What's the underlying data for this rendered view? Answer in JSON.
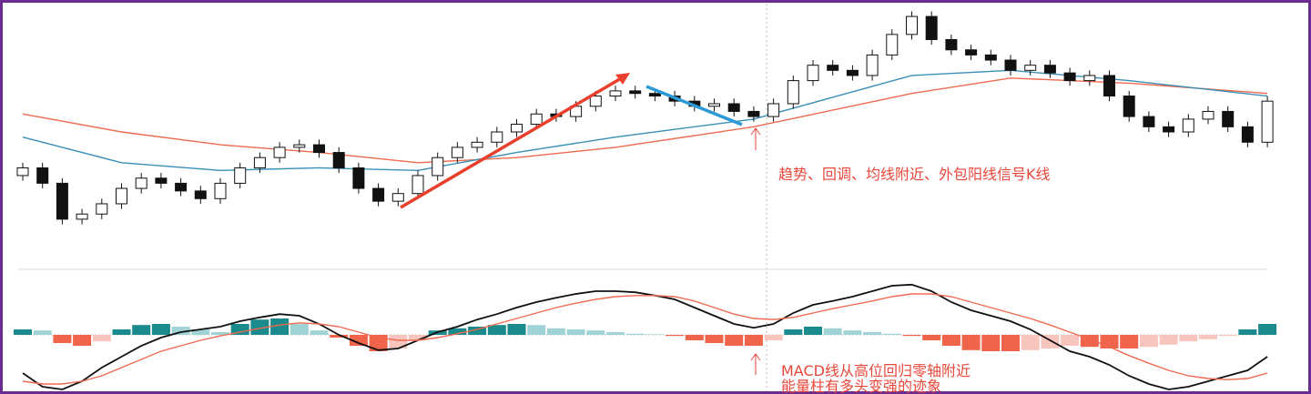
{
  "chart_data": [
    {
      "type": "candlestick",
      "annotation": "趋势、回调、均线附近、外包阳线信号K线",
      "open": [
        33,
        36,
        30,
        16,
        18,
        22,
        28,
        32,
        30,
        27,
        24,
        30,
        36,
        40,
        44,
        45,
        42,
        36,
        28,
        23,
        26,
        33,
        40,
        44,
        46,
        50,
        53,
        57,
        56,
        60,
        64,
        66,
        65,
        64,
        62,
        60,
        61,
        58,
        56,
        61,
        70,
        76,
        74,
        72,
        80,
        88,
        95,
        86,
        82,
        80,
        78,
        74,
        76,
        73,
        70,
        72,
        64,
        56,
        52,
        50,
        55,
        58,
        52,
        46
      ],
      "high": [
        38,
        38,
        32,
        20,
        24,
        30,
        34,
        34,
        32,
        29,
        32,
        38,
        42,
        46,
        47,
        47,
        44,
        38,
        30,
        28,
        35,
        42,
        46,
        48,
        52,
        55,
        59,
        59,
        62,
        66,
        68,
        68,
        67,
        66,
        64,
        63,
        63,
        60,
        63,
        72,
        78,
        78,
        76,
        82,
        90,
        97,
        97,
        88,
        84,
        82,
        80,
        78,
        78,
        75,
        74,
        74,
        66,
        58,
        54,
        57,
        60,
        60,
        54,
        64
      ],
      "low": [
        31,
        28,
        14,
        14,
        16,
        20,
        26,
        28,
        25,
        22,
        22,
        28,
        34,
        38,
        42,
        40,
        34,
        26,
        21,
        21,
        24,
        31,
        38,
        42,
        44,
        48,
        51,
        54,
        54,
        58,
        62,
        63,
        62,
        60,
        58,
        58,
        56,
        54,
        54,
        59,
        68,
        72,
        70,
        70,
        78,
        86,
        84,
        80,
        78,
        76,
        72,
        72,
        71,
        68,
        68,
        62,
        54,
        50,
        48,
        48,
        53,
        50,
        44,
        44
      ],
      "close": [
        36,
        30,
        16,
        18,
        22,
        28,
        32,
        30,
        27,
        24,
        30,
        36,
        40,
        44,
        45,
        42,
        36,
        28,
        23,
        26,
        33,
        40,
        44,
        46,
        50,
        53,
        57,
        56,
        60,
        64,
        66,
        65,
        64,
        62,
        60,
        61,
        58,
        56,
        61,
        70,
        76,
        74,
        72,
        80,
        88,
        95,
        86,
        82,
        80,
        78,
        74,
        76,
        73,
        70,
        72,
        64,
        56,
        52,
        50,
        55,
        58,
        52,
        46,
        62
      ],
      "up_color": "#ffffff",
      "down_color": "#111111",
      "series": [
        {
          "color": "#f06a50",
          "x": [
            0,
            5,
            10,
            15,
            20,
            25,
            30,
            37,
            45,
            50,
            56,
            63
          ],
          "values": [
            57,
            50,
            45,
            42,
            38,
            40,
            44,
            52,
            65,
            71,
            69,
            65
          ]
        },
        {
          "color": "#3a8fb7",
          "x": [
            0,
            5,
            10,
            15,
            20,
            25,
            30,
            37,
            45,
            50,
            56,
            63
          ],
          "values": [
            48,
            38,
            35,
            36,
            35,
            42,
            48,
            55,
            72,
            74,
            70,
            64
          ]
        }
      ],
      "ylim": [
        0,
        100
      ]
    },
    {
      "type": "macd",
      "annotations": [
        "MACD线从高位回归零轴附近",
        "能量柱有多头变强的迹象"
      ],
      "histogram": {
        "values": [
          0.1,
          0.08,
          -0.15,
          -0.2,
          -0.12,
          0.1,
          0.18,
          0.2,
          0.15,
          0.1,
          0.05,
          0.2,
          0.28,
          0.3,
          0.2,
          0.08,
          -0.05,
          -0.2,
          -0.3,
          -0.25,
          -0.1,
          0.08,
          0.12,
          0.15,
          0.18,
          0.2,
          0.18,
          0.12,
          0.1,
          0.08,
          0.05,
          0.02,
          0.01,
          -0.02,
          -0.1,
          -0.15,
          -0.2,
          -0.2,
          -0.1,
          0.1,
          0.15,
          0.12,
          0.08,
          0.05,
          0.02,
          -0.02,
          -0.1,
          -0.2,
          -0.28,
          -0.3,
          -0.3,
          -0.28,
          -0.25,
          -0.2,
          -0.22,
          -0.25,
          -0.25,
          -0.22,
          -0.18,
          -0.12,
          -0.08,
          -0.02,
          0.1,
          0.2
        ],
        "up_strong": "#1a8a8c",
        "up_weak": "#9fd3d6",
        "down_strong": "#f0644b",
        "down_weak": "#f8c5be"
      },
      "series": [
        {
          "color": "#111111",
          "values": [
            -0.7,
            -0.95,
            -1.0,
            -0.85,
            -0.6,
            -0.4,
            -0.2,
            -0.05,
            0.05,
            0.1,
            0.15,
            0.25,
            0.32,
            0.38,
            0.35,
            0.2,
            0.0,
            -0.15,
            -0.28,
            -0.25,
            -0.1,
            0.05,
            0.15,
            0.28,
            0.38,
            0.5,
            0.6,
            0.68,
            0.75,
            0.8,
            0.8,
            0.78,
            0.72,
            0.65,
            0.5,
            0.35,
            0.2,
            0.13,
            0.2,
            0.4,
            0.55,
            0.62,
            0.7,
            0.8,
            0.9,
            0.92,
            0.8,
            0.6,
            0.45,
            0.35,
            0.25,
            0.1,
            -0.1,
            -0.3,
            -0.4,
            -0.55,
            -0.75,
            -0.9,
            -1.0,
            -0.95,
            -0.85,
            -0.75,
            -0.65,
            -0.4
          ]
        },
        {
          "color": "#f06a50",
          "values": [
            -0.85,
            -0.9,
            -0.9,
            -0.85,
            -0.75,
            -0.6,
            -0.45,
            -0.3,
            -0.2,
            -0.1,
            -0.02,
            0.05,
            0.12,
            0.18,
            0.22,
            0.2,
            0.15,
            0.05,
            -0.05,
            -0.1,
            -0.1,
            -0.05,
            0.02,
            0.1,
            0.2,
            0.3,
            0.4,
            0.5,
            0.58,
            0.65,
            0.7,
            0.72,
            0.72,
            0.7,
            0.62,
            0.5,
            0.38,
            0.3,
            0.28,
            0.32,
            0.4,
            0.48,
            0.55,
            0.62,
            0.7,
            0.75,
            0.75,
            0.7,
            0.6,
            0.5,
            0.4,
            0.3,
            0.18,
            0.05,
            -0.08,
            -0.22,
            -0.38,
            -0.52,
            -0.65,
            -0.75,
            -0.8,
            -0.82,
            -0.8,
            -0.7
          ]
        }
      ],
      "ylim": [
        -1.1,
        1.1
      ]
    }
  ]
}
